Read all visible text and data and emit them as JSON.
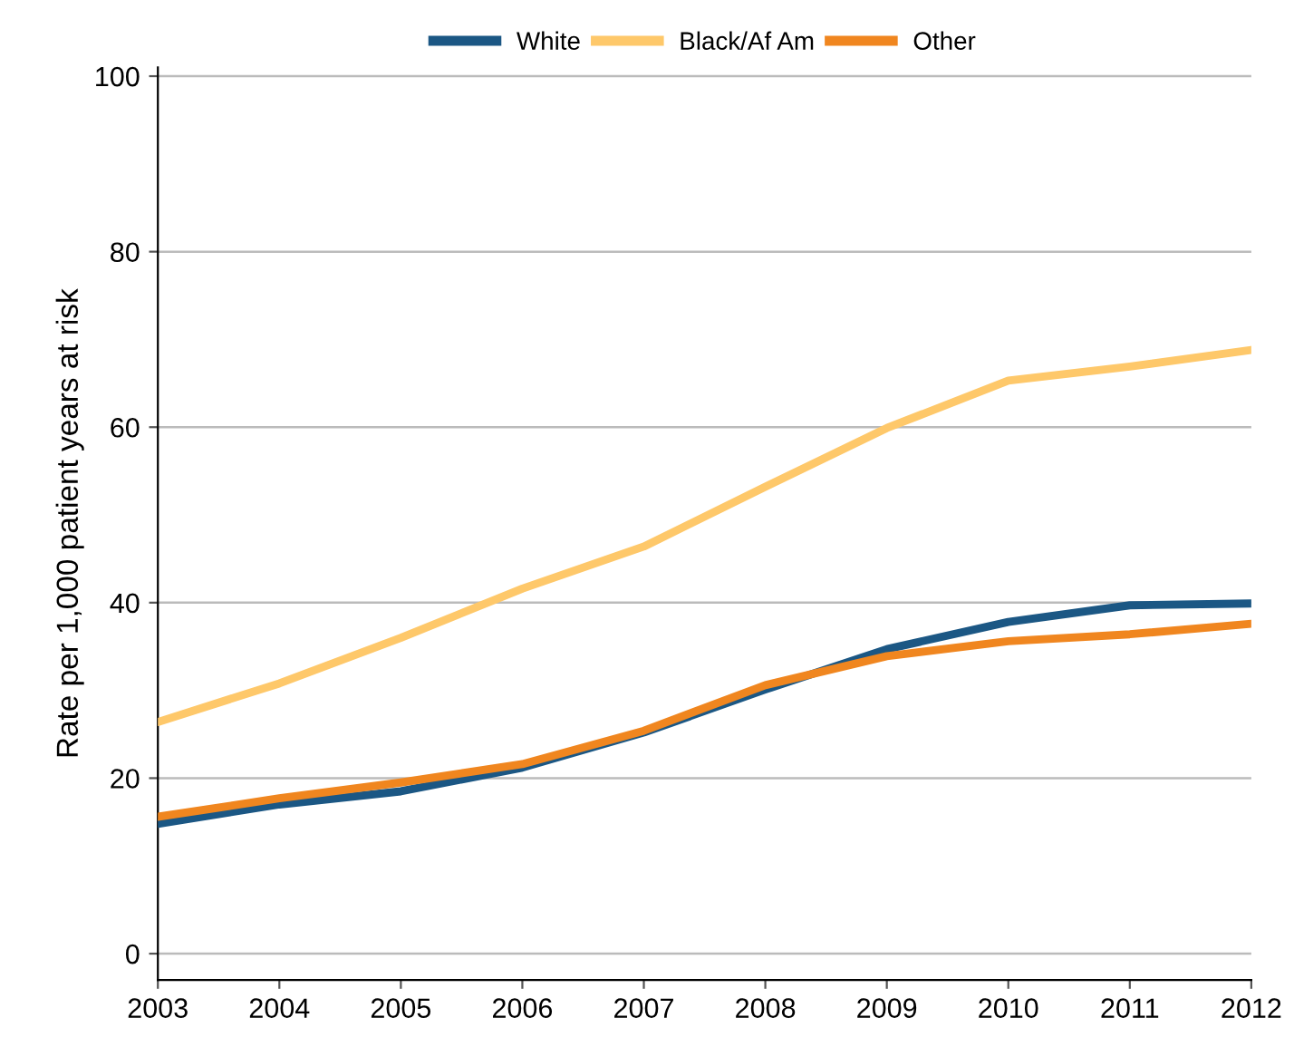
{
  "chart_data": {
    "type": "line",
    "ylabel": "Rate per 1,000 patient years at risk",
    "x": [
      2003,
      2004,
      2005,
      2006,
      2007,
      2008,
      2009,
      2010,
      2011,
      2012
    ],
    "series": [
      {
        "name": "White",
        "color": "#1b5784",
        "values": [
          14.8,
          17.0,
          18.5,
          21.2,
          25.2,
          30.1,
          34.7,
          37.8,
          39.7,
          39.9
        ]
      },
      {
        "name": "Black/Af Am",
        "color": "#fec86a",
        "values": [
          26.4,
          30.8,
          36.0,
          41.6,
          46.4,
          53.2,
          59.9,
          65.3,
          66.9,
          68.8
        ]
      },
      {
        "name": "Other",
        "color": "#f0861f",
        "values": [
          15.6,
          17.7,
          19.5,
          21.6,
          25.4,
          30.6,
          33.9,
          35.6,
          36.4,
          37.6
        ]
      }
    ],
    "xlim": [
      2003,
      2012
    ],
    "xticks": [
      2003,
      2004,
      2005,
      2006,
      2007,
      2008,
      2009,
      2010,
      2011,
      2012
    ],
    "ylim": [
      -3,
      101
    ],
    "yticks": [
      0,
      20,
      40,
      60,
      80,
      100
    ],
    "grid": "y",
    "legend": "top",
    "marker": "none",
    "line_style": "solid"
  }
}
